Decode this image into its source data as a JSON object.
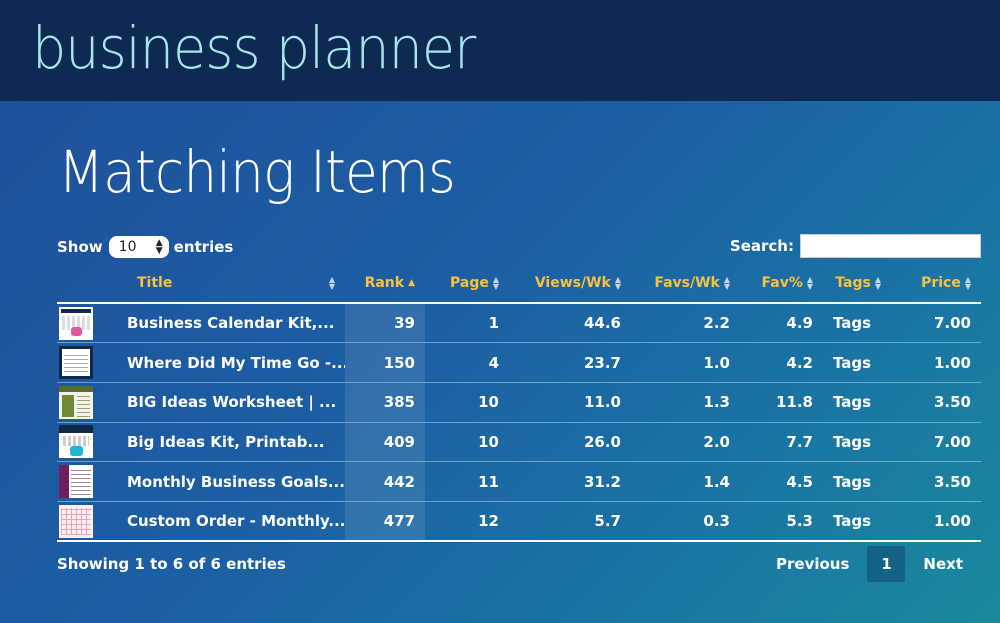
{
  "header": {
    "brand": "business planner"
  },
  "page": {
    "title": "Matching Items"
  },
  "controls": {
    "show_label": "Show",
    "entries_value": "10",
    "entries_label": "entries",
    "search_label": "Search:",
    "search_value": ""
  },
  "table": {
    "columns": [
      "Title",
      "Rank",
      "Page",
      "Views/Wk",
      "Favs/Wk",
      "Fav%",
      "Tags",
      "Price"
    ],
    "rows": [
      {
        "title": "Business Calendar Kit,...",
        "rank": "39",
        "page": "1",
        "views": "44.6",
        "favs": "2.2",
        "favpct": "4.9",
        "tags": "Tags",
        "price": "7.00",
        "thumb": "calendar-kit-thumbnail"
      },
      {
        "title": "Where Did My Time Go -...",
        "rank": "150",
        "page": "4",
        "views": "23.7",
        "favs": "1.0",
        "favpct": "4.2",
        "tags": "Tags",
        "price": "1.00",
        "thumb": "time-tracker-thumbnail"
      },
      {
        "title": "BIG Ideas Worksheet | ...",
        "rank": "385",
        "page": "10",
        "views": "11.0",
        "favs": "1.3",
        "favpct": "11.8",
        "tags": "Tags",
        "price": "3.50",
        "thumb": "ideas-worksheet-thumbnail"
      },
      {
        "title": "Big Ideas Kit, Printab...",
        "rank": "409",
        "page": "10",
        "views": "26.0",
        "favs": "2.0",
        "favpct": "7.7",
        "tags": "Tags",
        "price": "7.00",
        "thumb": "ideas-kit-thumbnail"
      },
      {
        "title": "Monthly Business Goals...",
        "rank": "442",
        "page": "11",
        "views": "31.2",
        "favs": "1.4",
        "favpct": "4.5",
        "tags": "Tags",
        "price": "3.50",
        "thumb": "business-goals-thumbnail"
      },
      {
        "title": "Custom Order - Monthly...",
        "rank": "477",
        "page": "12",
        "views": "5.7",
        "favs": "0.3",
        "favpct": "5.3",
        "tags": "Tags",
        "price": "1.00",
        "thumb": "custom-order-thumbnail"
      }
    ]
  },
  "footer": {
    "info": "Showing 1 to 6 of 6 entries",
    "previous": "Previous",
    "current_page": "1",
    "next": "Next"
  },
  "colors": {
    "header_bg": "#0f2a52",
    "brand": "#a7e6e8",
    "column_header": "#f5c244"
  }
}
